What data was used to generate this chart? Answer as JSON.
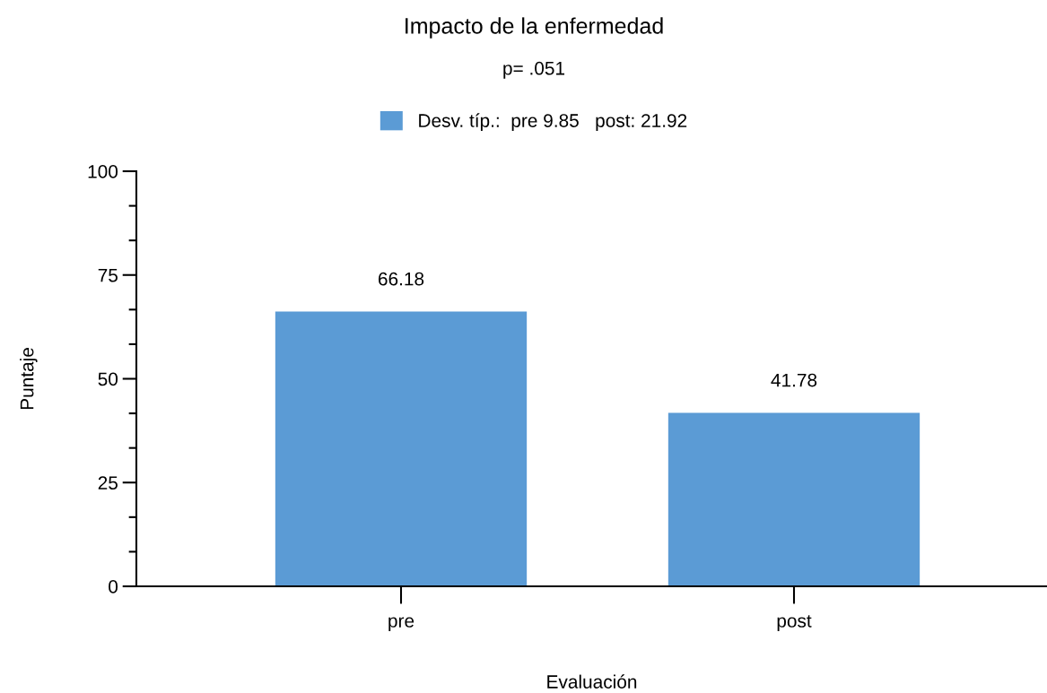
{
  "chart_data": {
    "type": "bar",
    "title": "Impacto de la enfermedad",
    "subtitle": "p= .051",
    "xlabel": "Evaluación",
    "ylabel": "Puntaje",
    "categories": [
      "pre",
      "post"
    ],
    "series": [
      {
        "name": "Desv. típ.:  pre 9.85   post: 21.92",
        "color": "#5b9bd5",
        "values": [
          66.18,
          41.78
        ]
      }
    ],
    "ylim": [
      0,
      100
    ],
    "yticks": [
      0,
      25,
      50,
      75,
      100
    ],
    "data_labels": true,
    "grid": false,
    "legend": "top"
  }
}
